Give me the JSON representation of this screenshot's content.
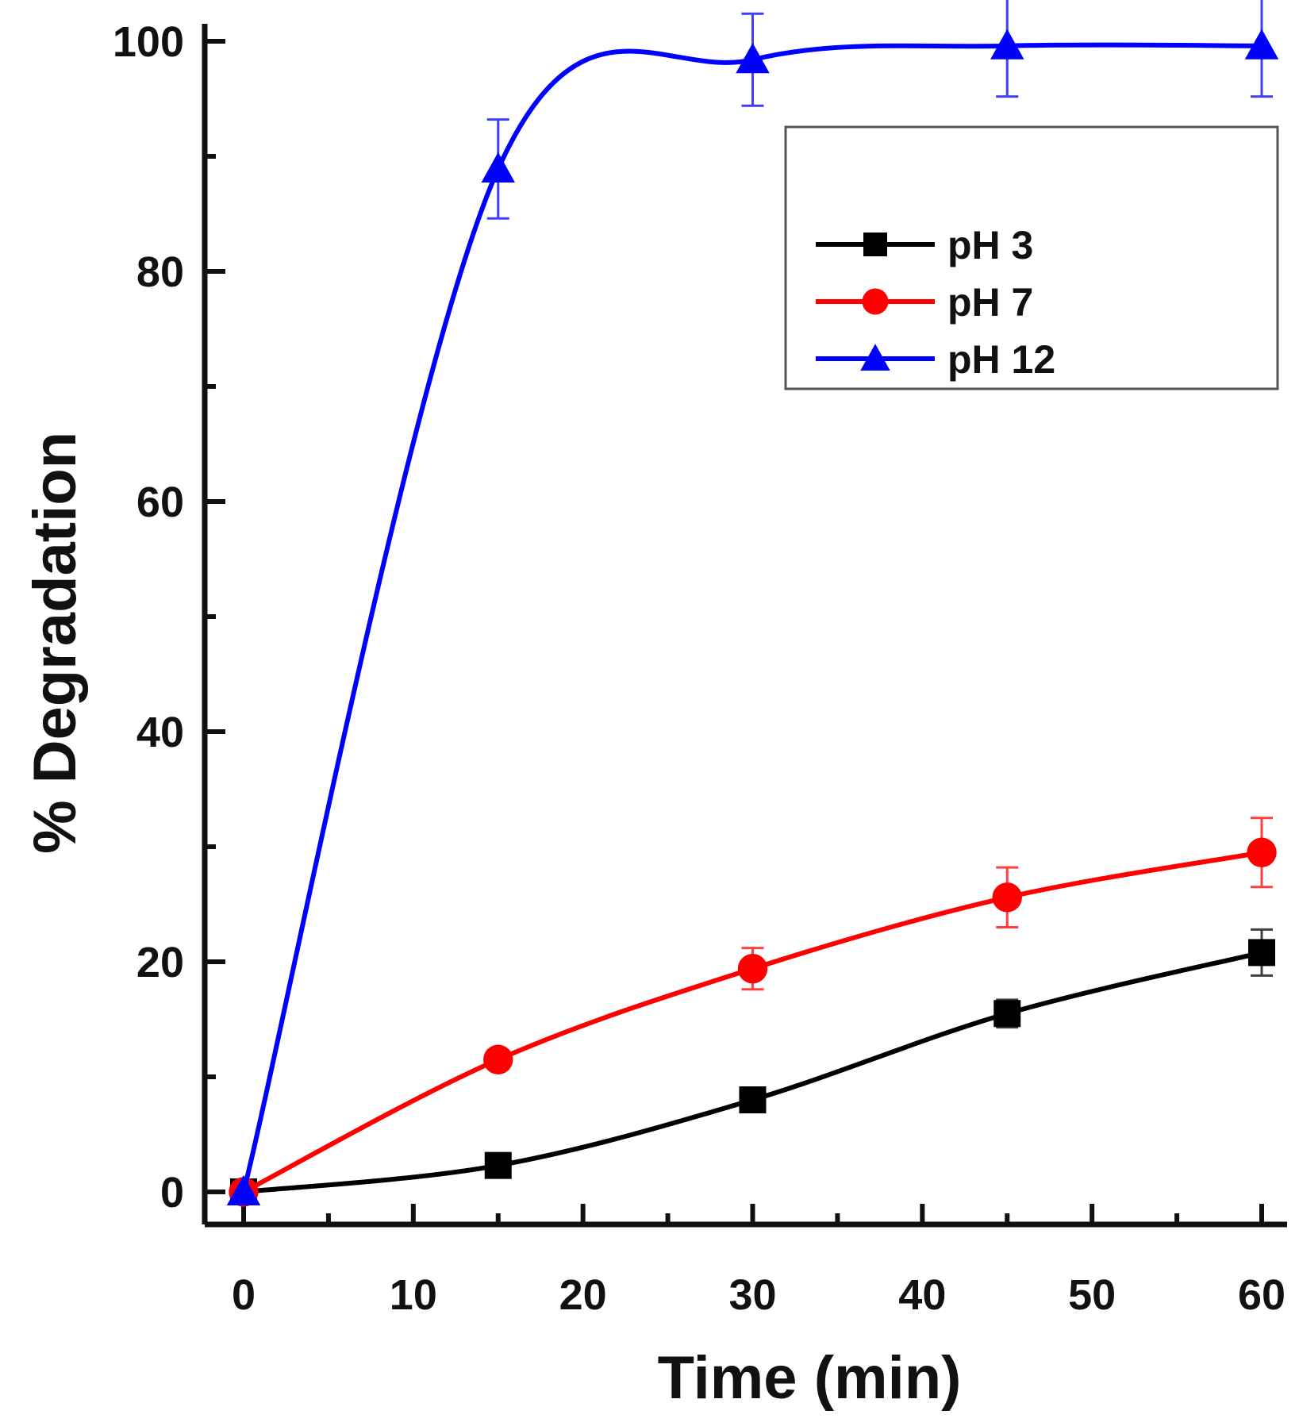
{
  "chart_data": {
    "type": "line",
    "title": "",
    "xlabel": "Time (min)",
    "ylabel": "% Degradation",
    "xlim": [
      -2,
      62
    ],
    "ylim": [
      -3,
      101
    ],
    "xticks": [
      0,
      10,
      20,
      30,
      40,
      50,
      60
    ],
    "xtick_labels": [
      "0",
      "10",
      "20",
      "30",
      "40",
      "50",
      "60"
    ],
    "yticks": [
      0,
      20,
      40,
      60,
      80,
      100
    ],
    "ytick_labels": [
      "0",
      "20",
      "40",
      "60",
      "80",
      "100"
    ],
    "grid": false,
    "legend_position": "top-right",
    "x": [
      0,
      15,
      30,
      45,
      60
    ],
    "series": [
      {
        "name": "pH 3",
        "color": "#000000",
        "marker": "square",
        "values": [
          0,
          2.3,
          8,
          15.5,
          20.8
        ],
        "errors": [
          0,
          0.5,
          0.6,
          1.2,
          2.0
        ]
      },
      {
        "name": "pH 7",
        "color": "#ff0000",
        "marker": "circle",
        "values": [
          0,
          11.5,
          19.4,
          25.6,
          29.5
        ],
        "errors": [
          0,
          0.8,
          1.8,
          2.6,
          3.0
        ]
      },
      {
        "name": "pH 12",
        "color": "#0000ff",
        "marker": "triangle",
        "values": [
          0,
          88.9,
          98.4,
          99.6,
          99.6
        ],
        "errors": [
          0,
          4.3,
          4.0,
          4.4,
          4.4
        ]
      }
    ]
  }
}
